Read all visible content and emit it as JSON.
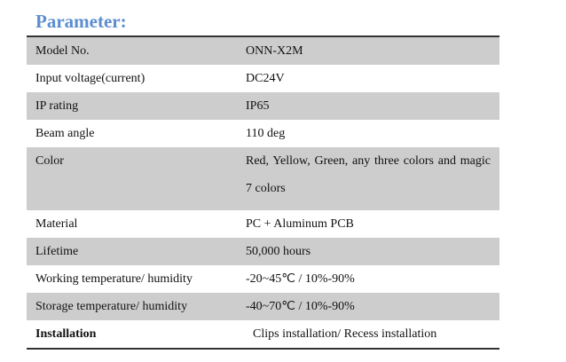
{
  "header": {
    "title": "Parameter:"
  },
  "table": {
    "rows": [
      [
        "Model No.",
        "ONN-X2M"
      ],
      [
        "Input voltage(current)",
        "DC24V"
      ],
      [
        "IP rating",
        "IP65"
      ],
      [
        "Beam angle",
        "110 deg"
      ],
      [
        "Color",
        "Red, Yellow, Green, any three colors and magic 7 colors"
      ],
      [
        "Material",
        "PC + Aluminum PCB"
      ],
      [
        "Lifetime",
        "50,000 hours"
      ],
      [
        "Working temperature/ humidity",
        "-20~45℃ / 10%-90%"
      ],
      [
        "Storage temperature/ humidity",
        "-40~70℃ / 10%-90%"
      ],
      [
        "Installation",
        "Clips installation/ Recess installation"
      ]
    ]
  }
}
